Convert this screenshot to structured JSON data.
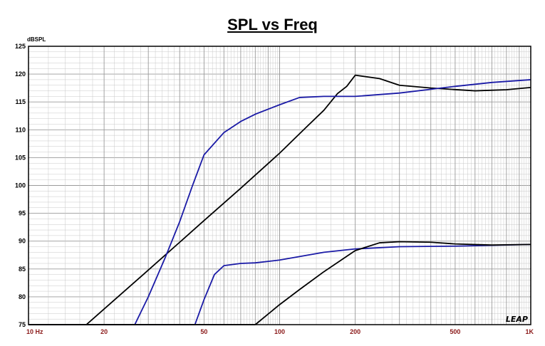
{
  "chart_data": {
    "type": "line",
    "title": "SPL vs Freq",
    "ylabel": "dBSPL",
    "xlabel": "",
    "xscale": "log",
    "xlim": [
      10,
      1000
    ],
    "ylim": [
      75,
      125
    ],
    "grid": true,
    "yticks": [
      "125",
      "120",
      "115",
      "110",
      "105",
      "100",
      "95",
      "90",
      "85",
      "80",
      "75"
    ],
    "xticks": [
      "10 Hz",
      "20",
      "50",
      "100",
      "200",
      "500",
      "1K"
    ],
    "logo": "LEAP",
    "colors": {
      "blue": "#1a1aa6",
      "black": "#000000",
      "grid": "#c8c8c8",
      "tick_text": "#8b1a1a"
    },
    "series": [
      {
        "color": "#000000",
        "x": [
          17,
          20,
          30,
          40,
          50,
          70,
          100,
          130,
          150,
          170,
          185,
          200,
          250,
          300,
          400,
          600,
          800,
          1000
        ],
        "y": [
          75,
          77.8,
          84.8,
          89.8,
          93.7,
          99.5,
          105.8,
          110.8,
          113.5,
          116.5,
          117.8,
          119.8,
          119.2,
          118.0,
          117.5,
          117.0,
          117.2,
          117.6
        ]
      },
      {
        "color": "#1a1aa6",
        "x": [
          26.5,
          30,
          35,
          40,
          45,
          50,
          60,
          70,
          80,
          100,
          120,
          150,
          200,
          300,
          500,
          700,
          1000
        ],
        "y": [
          75,
          80,
          87,
          93.5,
          100,
          105.5,
          109.5,
          111.5,
          112.8,
          114.5,
          115.8,
          116.0,
          116.0,
          116.6,
          117.8,
          118.5,
          119.0
        ]
      },
      {
        "color": "#1a1aa6",
        "x": [
          46,
          50,
          55,
          60,
          70,
          80,
          100,
          150,
          200,
          300,
          500,
          1000
        ],
        "y": [
          75,
          79.5,
          84,
          85.6,
          86.0,
          86.1,
          86.6,
          88.0,
          88.6,
          89.0,
          89.1,
          89.4
        ]
      },
      {
        "color": "#000000",
        "x": [
          80,
          100,
          120,
          150,
          200,
          250,
          300,
          400,
          500,
          700,
          1000
        ],
        "y": [
          75,
          78.6,
          81.3,
          84.5,
          88.3,
          89.7,
          89.9,
          89.8,
          89.5,
          89.3,
          89.4
        ]
      }
    ]
  }
}
